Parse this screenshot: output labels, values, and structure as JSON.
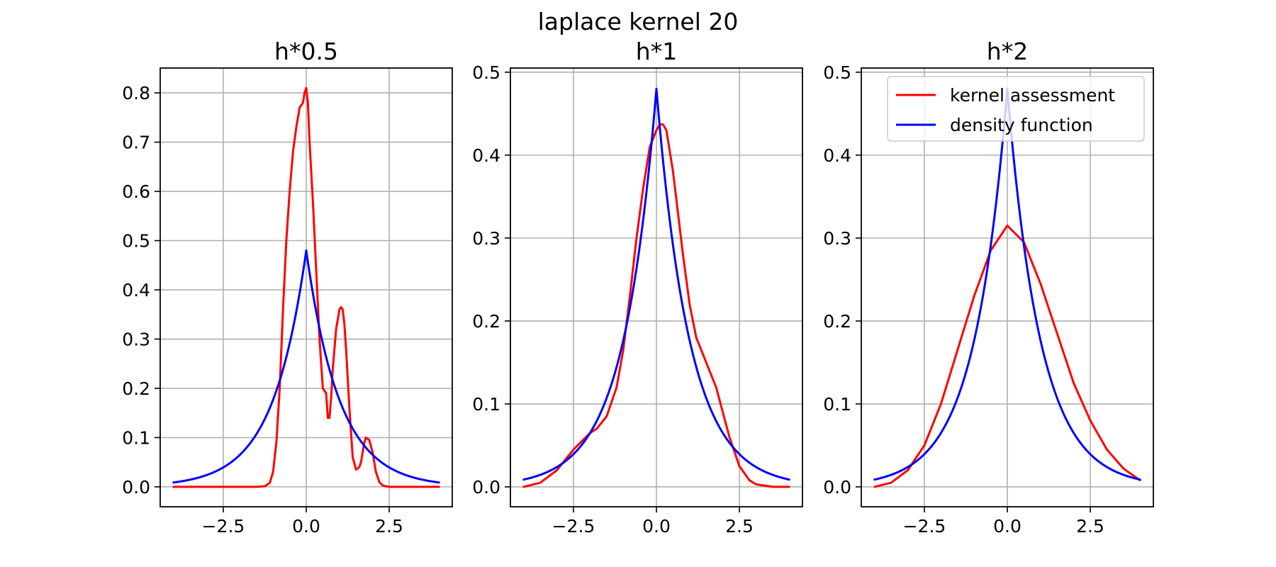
{
  "figure": {
    "title": "laplace kernel 20"
  },
  "colors": {
    "kernel": "#ff0000",
    "density": "#0000ff",
    "grid": "#b0b0b0",
    "axes": "#000000"
  },
  "legend": {
    "placement": "upper right of third subplot",
    "entries": [
      "kernel assessment",
      "density function"
    ]
  },
  "chart_data": [
    {
      "type": "line",
      "title": "h*0.5",
      "xlabel": "",
      "ylabel": "",
      "xlim": [
        -4.4,
        4.4
      ],
      "ylim": [
        -0.0405,
        0.8505
      ],
      "xticks": [
        -2.5,
        0.0,
        2.5
      ],
      "xtick_labels": [
        "−2.5",
        "0.0",
        "2.5"
      ],
      "yticks": [
        0.0,
        0.1,
        0.2,
        0.3,
        0.4,
        0.5,
        0.6,
        0.7,
        0.8
      ],
      "ytick_labels": [
        "0.0",
        "0.1",
        "0.2",
        "0.3",
        "0.4",
        "0.5",
        "0.6",
        "0.7",
        "0.8"
      ],
      "grid": true,
      "legend": false,
      "series": [
        {
          "name": "kernel assessment",
          "color": "#ff0000",
          "x": [
            -4.0,
            -1.5,
            -1.25,
            -1.1,
            -1.0,
            -0.9,
            -0.8,
            -0.7,
            -0.6,
            -0.5,
            -0.4,
            -0.3,
            -0.2,
            -0.1,
            -0.05,
            0.0,
            0.05,
            0.1,
            0.2,
            0.3,
            0.4,
            0.5,
            0.6,
            0.65,
            0.7,
            0.75,
            0.8,
            0.9,
            1.0,
            1.05,
            1.1,
            1.15,
            1.2,
            1.3,
            1.4,
            1.5,
            1.6,
            1.65,
            1.7,
            1.75,
            1.8,
            1.9,
            2.0,
            2.05,
            2.1,
            2.2,
            2.3,
            2.4,
            2.5,
            2.7,
            3.0,
            4.0
          ],
          "y": [
            0.0,
            0.0,
            0.001,
            0.008,
            0.03,
            0.09,
            0.2,
            0.36,
            0.5,
            0.6,
            0.68,
            0.73,
            0.77,
            0.78,
            0.8,
            0.81,
            0.78,
            0.7,
            0.58,
            0.44,
            0.3,
            0.2,
            0.19,
            0.14,
            0.14,
            0.18,
            0.24,
            0.32,
            0.36,
            0.365,
            0.36,
            0.33,
            0.28,
            0.16,
            0.06,
            0.035,
            0.04,
            0.05,
            0.07,
            0.09,
            0.1,
            0.095,
            0.07,
            0.05,
            0.03,
            0.01,
            0.003,
            0.001,
            0.0,
            0.0,
            0.0,
            0.0
          ]
        },
        {
          "name": "density function",
          "color": "#0000ff",
          "type": "laplace",
          "x_start": -4.0,
          "x_end": 4.0,
          "peak": 0.48,
          "scale": 1.0
        }
      ]
    },
    {
      "type": "line",
      "title": "h*1",
      "xlabel": "",
      "ylabel": "",
      "xlim": [
        -4.4,
        4.4
      ],
      "ylim": [
        -0.024,
        0.505
      ],
      "xticks": [
        -2.5,
        0.0,
        2.5
      ],
      "xtick_labels": [
        "−2.5",
        "0.0",
        "2.5"
      ],
      "yticks": [
        0.0,
        0.1,
        0.2,
        0.3,
        0.4,
        0.5
      ],
      "ytick_labels": [
        "0.0",
        "0.1",
        "0.2",
        "0.3",
        "0.4",
        "0.5"
      ],
      "grid": true,
      "legend": false,
      "series": [
        {
          "name": "kernel assessment",
          "color": "#ff0000",
          "x": [
            -4.0,
            -3.5,
            -3.0,
            -2.5,
            -2.0,
            -1.8,
            -1.5,
            -1.2,
            -1.0,
            -0.8,
            -0.6,
            -0.4,
            -0.2,
            0.0,
            0.1,
            0.2,
            0.3,
            0.5,
            0.8,
            1.0,
            1.2,
            1.5,
            1.8,
            2.0,
            2.2,
            2.5,
            2.8,
            3.0,
            3.5,
            4.0
          ],
          "y": [
            0.0,
            0.005,
            0.02,
            0.045,
            0.065,
            0.07,
            0.085,
            0.12,
            0.165,
            0.23,
            0.3,
            0.36,
            0.41,
            0.43,
            0.437,
            0.437,
            0.43,
            0.38,
            0.28,
            0.22,
            0.18,
            0.15,
            0.12,
            0.09,
            0.06,
            0.025,
            0.008,
            0.003,
            0.0,
            0.0
          ]
        },
        {
          "name": "density function",
          "color": "#0000ff",
          "type": "laplace",
          "x_start": -4.0,
          "x_end": 4.0,
          "peak": 0.48,
          "scale": 1.0
        }
      ]
    },
    {
      "type": "line",
      "title": "h*2",
      "xlabel": "",
      "ylabel": "",
      "xlim": [
        -4.4,
        4.4
      ],
      "ylim": [
        -0.024,
        0.505
      ],
      "xticks": [
        -2.5,
        0.0,
        2.5
      ],
      "xtick_labels": [
        "−2.5",
        "0.0",
        "2.5"
      ],
      "yticks": [
        0.0,
        0.1,
        0.2,
        0.3,
        0.4,
        0.5
      ],
      "ytick_labels": [
        "0.0",
        "0.1",
        "0.2",
        "0.3",
        "0.4",
        "0.5"
      ],
      "grid": true,
      "legend": true,
      "series": [
        {
          "name": "kernel assessment",
          "color": "#ff0000",
          "x": [
            -4.0,
            -3.5,
            -3.0,
            -2.5,
            -2.0,
            -1.5,
            -1.0,
            -0.5,
            0.0,
            0.5,
            1.0,
            1.5,
            2.0,
            2.5,
            3.0,
            3.5,
            4.0
          ],
          "y": [
            0.0,
            0.005,
            0.02,
            0.05,
            0.1,
            0.165,
            0.23,
            0.285,
            0.315,
            0.295,
            0.245,
            0.185,
            0.125,
            0.08,
            0.045,
            0.022,
            0.008
          ]
        },
        {
          "name": "density function",
          "color": "#0000ff",
          "type": "laplace",
          "x_start": -4.0,
          "x_end": 4.0,
          "peak": 0.48,
          "scale": 1.0
        }
      ]
    }
  ]
}
